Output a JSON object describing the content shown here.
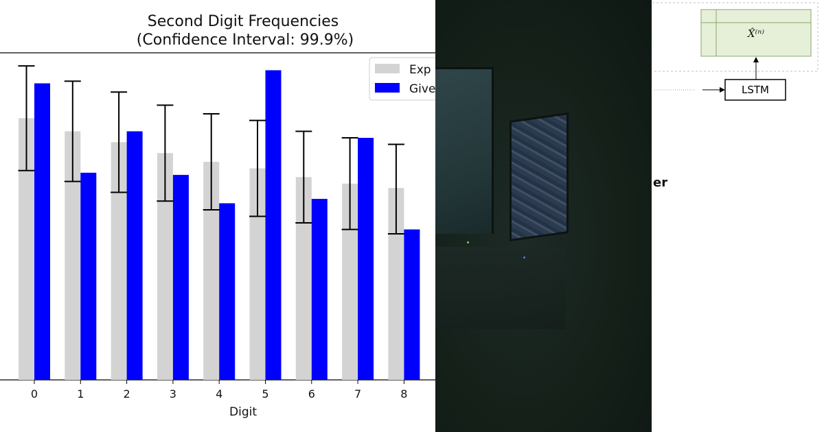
{
  "chart_data": {
    "type": "bar",
    "title": "Second Digit Frequencies",
    "subtitle": "(Confidence Interval: 99.9%)",
    "xlabel": "Digit",
    "ylabel": "",
    "categories": [
      "0",
      "1",
      "2",
      "3",
      "4",
      "5",
      "6",
      "7",
      "8"
    ],
    "ylim": [
      0,
      0.15
    ],
    "grid": false,
    "legend_position": "top-right",
    "colors": {
      "expected": "#d3d3d3",
      "given": "#0000ff",
      "errorbar": "#000000"
    },
    "series": [
      {
        "name": "Expected",
        "legend_label_visible": "Exp",
        "values": [
          0.12,
          0.114,
          0.109,
          0.104,
          0.1,
          0.097,
          0.093,
          0.09,
          0.088
        ],
        "err_low": [
          0.096,
          0.091,
          0.086,
          0.082,
          0.078,
          0.075,
          0.072,
          0.069,
          0.067
        ],
        "err_high": [
          0.144,
          0.137,
          0.132,
          0.126,
          0.122,
          0.119,
          0.114,
          0.111,
          0.108
        ]
      },
      {
        "name": "Given",
        "legend_label_visible": "Give",
        "values": [
          0.136,
          0.095,
          0.114,
          0.094,
          0.081,
          0.142,
          0.083,
          0.111,
          0.069
        ]
      }
    ]
  },
  "photo": {
    "description_icon": "desk-monitors-photo"
  },
  "diagram": {
    "partial_text": "er",
    "lstm_label": "LSTM",
    "output_label": "X̂⁽ⁿ⁾",
    "colors": {
      "output_box_fill": "#e6f0d8",
      "output_box_stroke": "#8aa46e",
      "dashed_stroke": "#bdbdbd"
    }
  }
}
